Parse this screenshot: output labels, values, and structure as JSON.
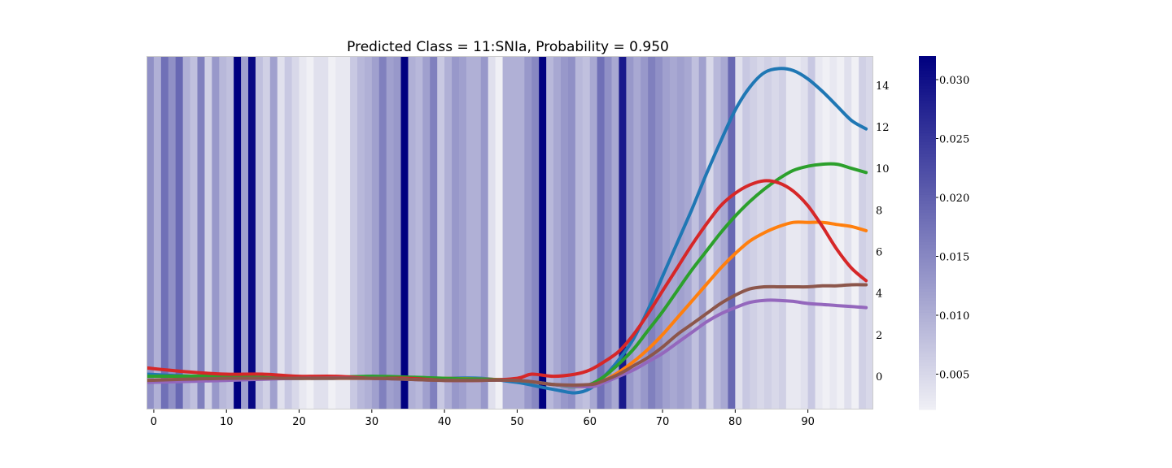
{
  "chart_data": {
    "type": "line",
    "title": "Predicted Class = 11:SNIa, Probability = 0.950",
    "xlabel": "",
    "ylabel": "",
    "xlim": [
      -1,
      99
    ],
    "ylim": [
      -1.6,
      15.4
    ],
    "y_axis_side": "right",
    "x_ticks": [
      0,
      10,
      20,
      30,
      40,
      50,
      60,
      70,
      80,
      90
    ],
    "y_ticks": [
      0,
      2,
      4,
      6,
      8,
      10,
      12,
      14
    ],
    "grid": false,
    "legend": "none",
    "series": [
      {
        "color": "#1f77b4",
        "x": [
          -1,
          5,
          10,
          15,
          20,
          25,
          30,
          35,
          40,
          45,
          50,
          53,
          56,
          58,
          60,
          62,
          64,
          66,
          68,
          70,
          72,
          74,
          76,
          78,
          80,
          82,
          84,
          86,
          88,
          90,
          92,
          94,
          96,
          98
        ],
        "y": [
          0.1,
          0.0,
          0.0,
          -0.1,
          -0.1,
          -0.1,
          0.0,
          -0.1,
          -0.1,
          -0.1,
          -0.3,
          -0.5,
          -0.7,
          -0.8,
          -0.6,
          0.0,
          0.8,
          1.8,
          3.2,
          4.8,
          6.4,
          8.0,
          9.7,
          11.3,
          12.8,
          13.9,
          14.6,
          14.8,
          14.7,
          14.3,
          13.7,
          13.0,
          12.3,
          11.9
        ]
      },
      {
        "color": "#ff7f0e",
        "x": [
          -1,
          10,
          20,
          30,
          40,
          50,
          55,
          60,
          62,
          64,
          66,
          68,
          70,
          72,
          74,
          76,
          78,
          80,
          82,
          84,
          86,
          88,
          90,
          92,
          94,
          96,
          98
        ],
        "y": [
          -0.2,
          -0.1,
          -0.1,
          -0.1,
          -0.1,
          -0.2,
          -0.4,
          -0.5,
          -0.2,
          0.2,
          0.7,
          1.3,
          2.0,
          2.8,
          3.6,
          4.4,
          5.2,
          5.9,
          6.5,
          6.9,
          7.2,
          7.4,
          7.4,
          7.4,
          7.3,
          7.2,
          7.0
        ]
      },
      {
        "color": "#2ca02c",
        "x": [
          -1,
          10,
          20,
          30,
          40,
          50,
          55,
          58,
          60,
          62,
          64,
          66,
          68,
          70,
          72,
          74,
          76,
          78,
          80,
          82,
          84,
          86,
          88,
          90,
          92,
          94,
          96,
          98
        ],
        "y": [
          0.0,
          0.0,
          -0.1,
          0.0,
          -0.1,
          -0.2,
          -0.4,
          -0.5,
          -0.4,
          0.0,
          0.6,
          1.3,
          2.2,
          3.1,
          4.1,
          5.1,
          6.0,
          6.9,
          7.7,
          8.4,
          9.0,
          9.5,
          9.9,
          10.1,
          10.2,
          10.2,
          10.0,
          9.8
        ]
      },
      {
        "color": "#d62728",
        "x": [
          -1,
          5,
          10,
          15,
          20,
          25,
          30,
          35,
          40,
          45,
          50,
          52,
          55,
          58,
          60,
          62,
          64,
          66,
          68,
          70,
          72,
          74,
          76,
          78,
          80,
          82,
          84,
          86,
          88,
          90,
          92,
          94,
          96,
          98
        ],
        "y": [
          0.4,
          0.2,
          0.1,
          0.1,
          0.0,
          0.0,
          -0.1,
          -0.1,
          -0.2,
          -0.2,
          -0.1,
          0.1,
          0.0,
          0.1,
          0.3,
          0.7,
          1.2,
          2.0,
          3.0,
          4.1,
          5.2,
          6.3,
          7.3,
          8.2,
          8.8,
          9.2,
          9.4,
          9.3,
          8.9,
          8.2,
          7.2,
          6.1,
          5.2,
          4.6
        ]
      },
      {
        "color": "#9467bd",
        "x": [
          -1,
          10,
          20,
          30,
          40,
          50,
          55,
          60,
          62,
          64,
          66,
          68,
          70,
          72,
          74,
          76,
          78,
          80,
          82,
          84,
          86,
          88,
          90,
          92,
          94,
          96,
          98
        ],
        "y": [
          -0.3,
          -0.2,
          -0.1,
          -0.1,
          -0.2,
          -0.2,
          -0.4,
          -0.5,
          -0.3,
          0.0,
          0.3,
          0.7,
          1.1,
          1.6,
          2.1,
          2.6,
          3.0,
          3.3,
          3.55,
          3.65,
          3.65,
          3.6,
          3.5,
          3.45,
          3.4,
          3.35,
          3.3
        ]
      },
      {
        "color": "#8c564b",
        "x": [
          -1,
          10,
          20,
          30,
          40,
          50,
          55,
          60,
          62,
          64,
          66,
          68,
          70,
          72,
          74,
          76,
          78,
          80,
          82,
          84,
          86,
          88,
          90,
          92,
          94,
          96,
          98
        ],
        "y": [
          -0.2,
          -0.1,
          -0.1,
          -0.1,
          -0.2,
          -0.2,
          -0.4,
          -0.4,
          -0.2,
          0.1,
          0.5,
          0.9,
          1.4,
          2.0,
          2.5,
          3.0,
          3.5,
          3.9,
          4.2,
          4.3,
          4.3,
          4.3,
          4.3,
          4.35,
          4.35,
          4.4,
          4.4
        ]
      }
    ],
    "attention_heatmap": {
      "x_start": -1,
      "bin_width": 1,
      "values": [
        0.014,
        0.01,
        0.018,
        0.014,
        0.019,
        0.01,
        0.008,
        0.016,
        0.006,
        0.013,
        0.009,
        0.008,
        0.032,
        0.012,
        0.031,
        0.008,
        0.006,
        0.012,
        0.004,
        0.007,
        0.005,
        0.003,
        0.002,
        0.004,
        0.004,
        0.002,
        0.003,
        0.003,
        0.007,
        0.009,
        0.01,
        0.012,
        0.016,
        0.012,
        0.013,
        0.032,
        0.01,
        0.009,
        0.012,
        0.016,
        0.007,
        0.01,
        0.013,
        0.012,
        0.01,
        0.01,
        0.013,
        0.004,
        0.002,
        0.01,
        0.01,
        0.01,
        0.013,
        0.015,
        0.032,
        0.009,
        0.011,
        0.013,
        0.014,
        0.009,
        0.008,
        0.011,
        0.018,
        0.014,
        0.011,
        0.029,
        0.013,
        0.011,
        0.013,
        0.016,
        0.014,
        0.012,
        0.011,
        0.012,
        0.011,
        0.008,
        0.012,
        0.005,
        0.009,
        0.011,
        0.019,
        0.004,
        0.007,
        0.006,
        0.005,
        0.006,
        0.005,
        0.006,
        0.003,
        0.003,
        0.004,
        0.007,
        0.003,
        0.002,
        0.003,
        0.002,
        0.004,
        0.002,
        0.006,
        0.005
      ]
    },
    "colorbar": {
      "colormap": "Blues to navy",
      "vmin": 0.002,
      "vmax": 0.032,
      "ticks": [
        0.005,
        0.01,
        0.015,
        0.02,
        0.025,
        0.03
      ],
      "tick_labels": [
        "0.005",
        "0.010",
        "0.015",
        "0.020",
        "0.025",
        "0.030"
      ],
      "low_color": "#f0f0f5",
      "high_color": "#000080"
    }
  }
}
